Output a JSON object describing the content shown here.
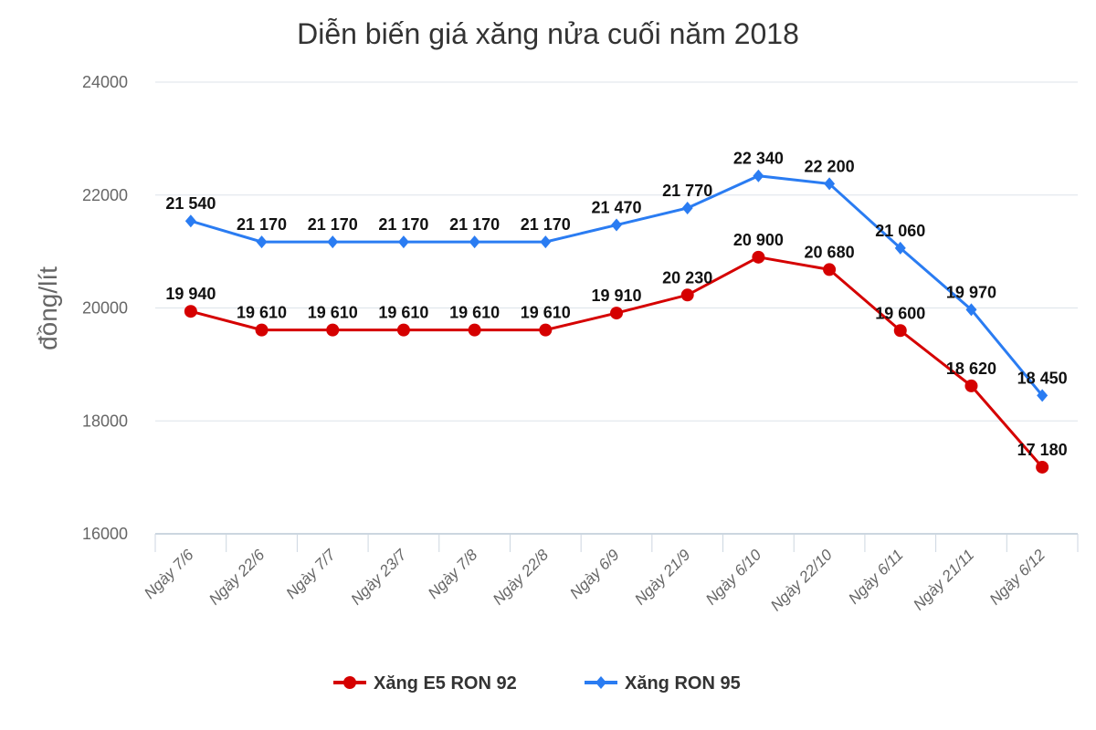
{
  "chart_data": {
    "type": "line",
    "title": "Diễn biến giá xăng nửa cuối năm 2018",
    "xlabel": "",
    "ylabel": "đồng/lít",
    "ylim": [
      16000,
      24000
    ],
    "yticks": [
      16000,
      18000,
      20000,
      22000,
      24000
    ],
    "grid": true,
    "legend_position": "bottom",
    "categories": [
      "Ngày 7/6",
      "Ngày 22/6",
      "Ngày 7/7",
      "Ngày 23/7",
      "Ngày 7/8",
      "Ngày 22/8",
      "Ngày 6/9",
      "Ngày 21/9",
      "Ngày 6/10",
      "Ngày 22/10",
      "Ngày 6/11",
      "Ngày 21/11",
      "Ngày 6/12"
    ],
    "series": [
      {
        "name": "Xăng E5 RON 92",
        "color": "#d50000",
        "marker": "circle",
        "values": [
          19940,
          19610,
          19610,
          19610,
          19610,
          19610,
          19910,
          20230,
          20900,
          20680,
          19600,
          18620,
          17180
        ],
        "labels": [
          "19 940",
          "19 610",
          "19 610",
          "19 610",
          "19 610",
          "19 610",
          "19 910",
          "20 230",
          "20 900",
          "20 680",
          "19 600",
          "18 620",
          "17 180"
        ]
      },
      {
        "name": "Xăng RON 95",
        "color": "#2a7cf2",
        "marker": "diamond",
        "values": [
          21540,
          21170,
          21170,
          21170,
          21170,
          21170,
          21470,
          21770,
          22340,
          22200,
          21060,
          19970,
          18450
        ],
        "labels": [
          "21 540",
          "21 170",
          "21 170",
          "21 170",
          "21 170",
          "21 170",
          "21 470",
          "21 770",
          "22 340",
          "22 200",
          "21 060",
          "19 970",
          "18 450"
        ]
      }
    ]
  }
}
